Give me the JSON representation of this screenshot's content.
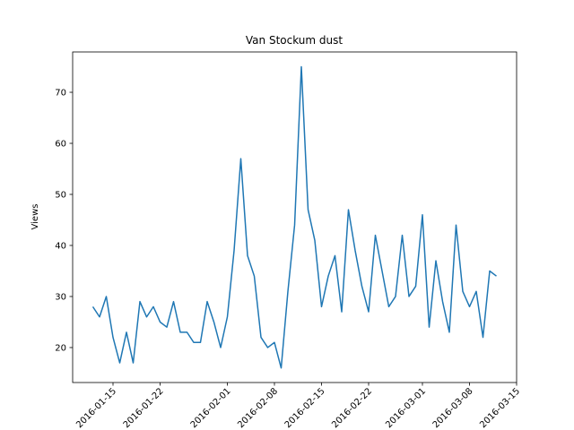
{
  "chart_data": {
    "type": "line",
    "title": "Van Stockum dust",
    "ylabel": "Views",
    "x": [
      "2016-01-12",
      "2016-01-13",
      "2016-01-14",
      "2016-01-15",
      "2016-01-16",
      "2016-01-17",
      "2016-01-18",
      "2016-01-19",
      "2016-01-20",
      "2016-01-21",
      "2016-01-22",
      "2016-01-23",
      "2016-01-24",
      "2016-01-25",
      "2016-01-26",
      "2016-01-27",
      "2016-01-28",
      "2016-01-29",
      "2016-01-30",
      "2016-01-31",
      "2016-02-01",
      "2016-02-02",
      "2016-02-03",
      "2016-02-04",
      "2016-02-05",
      "2016-02-06",
      "2016-02-07",
      "2016-02-08",
      "2016-02-09",
      "2016-02-10",
      "2016-02-11",
      "2016-02-12",
      "2016-02-13",
      "2016-02-14",
      "2016-02-15",
      "2016-02-16",
      "2016-02-17",
      "2016-02-18",
      "2016-02-19",
      "2016-02-20",
      "2016-02-21",
      "2016-02-22",
      "2016-02-23",
      "2016-02-24",
      "2016-02-25",
      "2016-02-26",
      "2016-02-27",
      "2016-02-28",
      "2016-02-29",
      "2016-03-01",
      "2016-03-02",
      "2016-03-03",
      "2016-03-04",
      "2016-03-05",
      "2016-03-06",
      "2016-03-07",
      "2016-03-08",
      "2016-03-09",
      "2016-03-10",
      "2016-03-11",
      "2016-03-12"
    ],
    "series": [
      {
        "name": "Views",
        "color": "#1f77b4",
        "values": [
          28,
          26,
          30,
          22,
          17,
          23,
          17,
          29,
          26,
          28,
          25,
          24,
          29,
          23,
          23,
          21,
          21,
          29,
          25,
          20,
          26,
          39,
          57,
          38,
          34,
          22,
          20,
          21,
          16,
          31,
          44,
          75,
          47,
          41,
          28,
          34,
          38,
          27,
          47,
          39,
          32,
          27,
          42,
          35,
          28,
          30,
          42,
          30,
          32,
          46,
          24,
          37,
          29,
          23,
          44,
          31,
          28,
          31,
          22,
          35,
          34
        ]
      }
    ],
    "xlim": [
      "2016-01-09",
      "2016-03-15"
    ],
    "xticks": [
      "2016-01-15",
      "2016-01-22",
      "2016-02-01",
      "2016-02-08",
      "2016-02-15",
      "2016-02-22",
      "2016-03-01",
      "2016-03-08",
      "2016-03-15"
    ],
    "ylim": [
      13.15,
      77.9
    ],
    "yticks": [
      20,
      30,
      40,
      50,
      60,
      70
    ]
  }
}
